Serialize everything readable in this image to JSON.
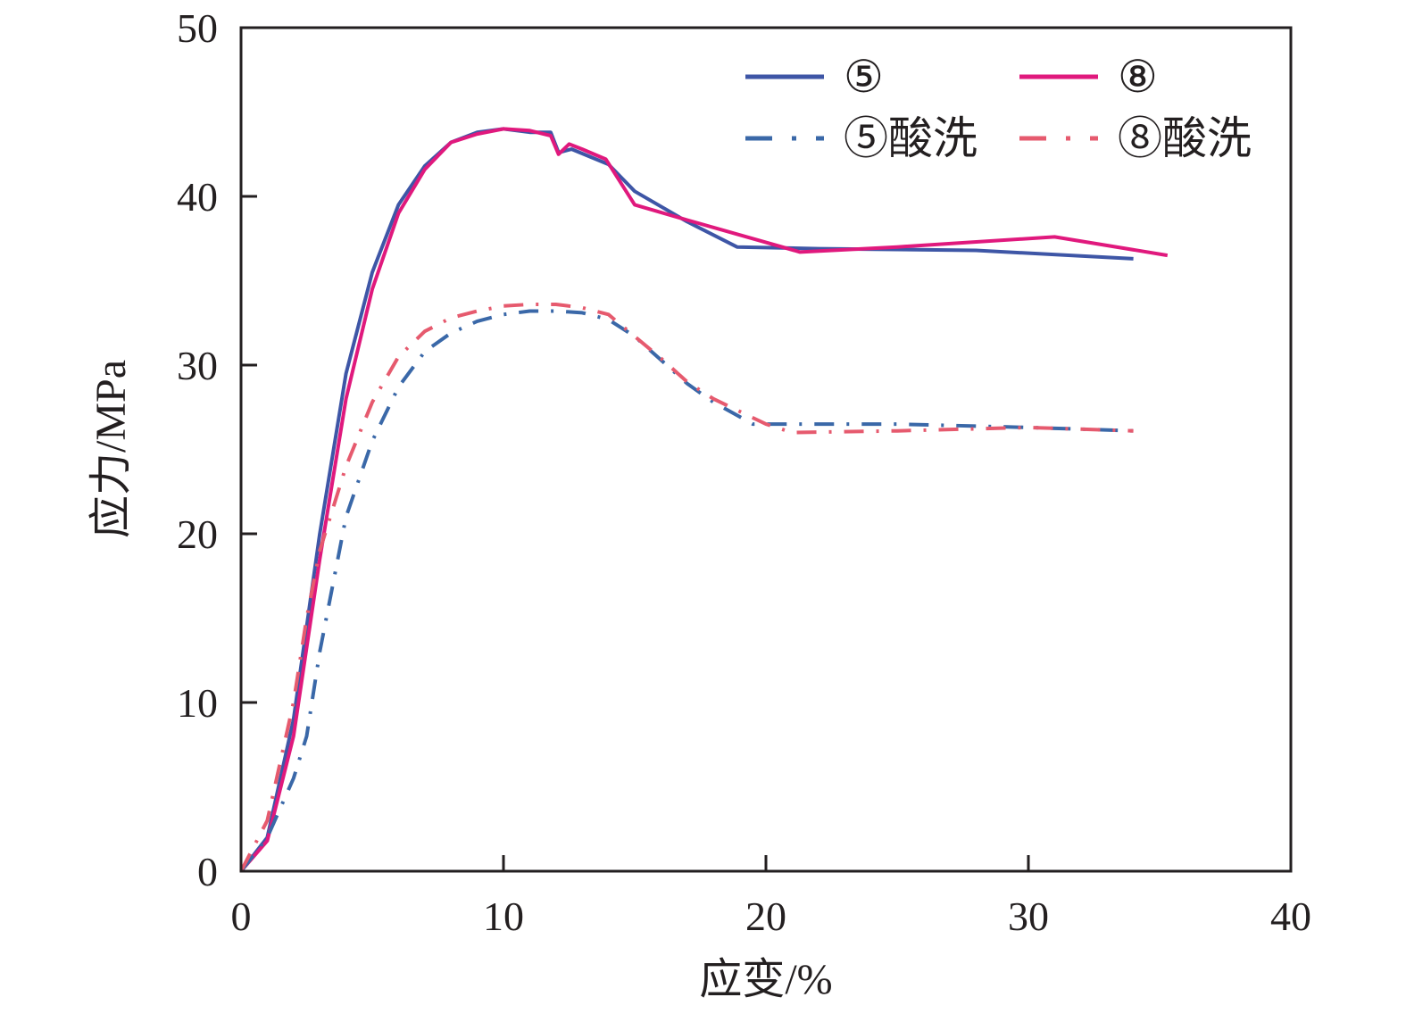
{
  "chart_data": {
    "type": "line",
    "xlabel": "应变/%",
    "ylabel": "应力/MPa",
    "xlim": [
      0,
      40
    ],
    "ylim": [
      0,
      50
    ],
    "xticks": [
      0,
      10,
      20,
      30,
      40
    ],
    "yticks": [
      0,
      10,
      20,
      30,
      40,
      50
    ],
    "grid": false,
    "legend_position": "top-right",
    "series": [
      {
        "name": "⑤",
        "color": "#3e56a6",
        "style": "solid",
        "x": [
          0,
          1,
          2,
          3,
          4,
          5,
          6,
          7,
          8,
          9,
          10,
          11,
          11.8,
          12.1,
          12.6,
          14,
          15,
          17,
          18.9,
          22,
          28,
          34
        ],
        "y": [
          0,
          2,
          9,
          20,
          29.5,
          35.5,
          39.5,
          41.8,
          43.2,
          43.8,
          44,
          43.8,
          43.8,
          42.6,
          42.8,
          41.9,
          40.3,
          38.5,
          37,
          36.9,
          36.8,
          36.3
        ]
      },
      {
        "name": "⑧",
        "color": "#e0197d",
        "style": "solid",
        "x": [
          0,
          1,
          2,
          3,
          4,
          5,
          6,
          7,
          8,
          9,
          10,
          11,
          11.8,
          12.1,
          12.5,
          13,
          13.9,
          15,
          17,
          21.3,
          25,
          31,
          35.3
        ],
        "y": [
          0,
          1.8,
          8,
          18.5,
          28,
          34.5,
          39,
          41.6,
          43.2,
          43.7,
          44,
          43.9,
          43.6,
          42.5,
          43.1,
          42.8,
          42.2,
          39.5,
          38.6,
          36.7,
          37,
          37.6,
          36.5
        ]
      },
      {
        "name": "⑤酸洗",
        "color": "#3a68a8",
        "style": "dashdot",
        "x": [
          0,
          1,
          2,
          2.5,
          3,
          3.5,
          4,
          5,
          6,
          7,
          8,
          9,
          10,
          11,
          12,
          13,
          14,
          15,
          16,
          17,
          18,
          19.5,
          25,
          30,
          34
        ],
        "y": [
          0,
          2,
          5.5,
          8,
          13,
          17,
          21,
          25.5,
          28.7,
          30.8,
          31.9,
          32.6,
          33,
          33.2,
          33.2,
          33.1,
          32.7,
          31.7,
          30.3,
          28.9,
          27.8,
          26.5,
          26.5,
          26.3,
          26.1
        ]
      },
      {
        "name": "⑧酸洗",
        "color": "#e65a6e",
        "style": "dashdot",
        "x": [
          0,
          1,
          2,
          2.5,
          3,
          3.5,
          4,
          5,
          6,
          7,
          8,
          9,
          10,
          11,
          12,
          13,
          14,
          15,
          16,
          17,
          18,
          20,
          21,
          25,
          30,
          34
        ],
        "y": [
          0,
          3,
          10,
          15,
          19,
          21.5,
          24,
          27.8,
          30.5,
          32,
          32.8,
          33.2,
          33.5,
          33.6,
          33.6,
          33.4,
          33,
          31.7,
          30.4,
          29,
          28,
          26.5,
          26,
          26.1,
          26.3,
          26.1
        ]
      }
    ]
  }
}
